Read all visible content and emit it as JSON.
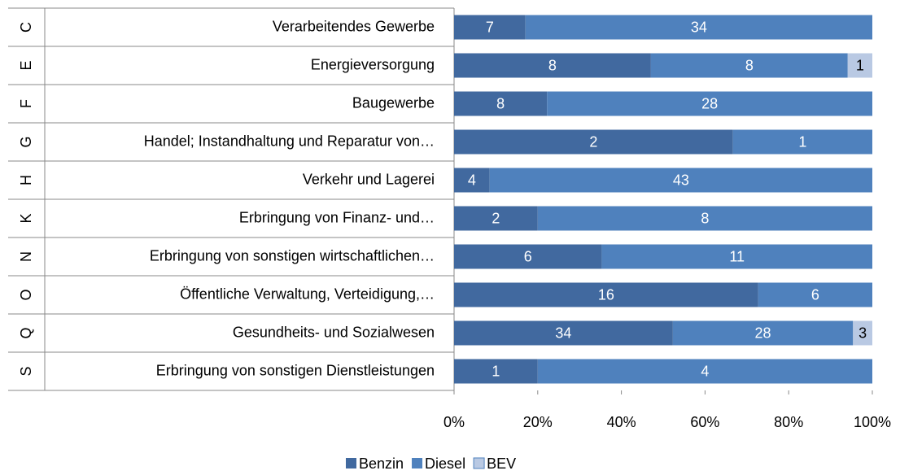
{
  "chart_data": {
    "type": "bar",
    "orientation": "horizontal",
    "stacking": "percent",
    "category_codes": [
      "C",
      "E",
      "F",
      "G",
      "H",
      "K",
      "N",
      "O",
      "Q",
      "S"
    ],
    "categories": [
      "Verarbeitendes Gewerbe",
      "Energieversorgung",
      "Baugewerbe",
      "Handel; Instandhaltung und Reparatur von…",
      "Verkehr und Lagerei",
      "Erbringung von Finanz- und…",
      "Erbringung von sonstigen wirtschaftlichen…",
      "Öffentliche Verwaltung, Verteidigung,…",
      "Gesundheits- und Sozialwesen",
      "Erbringung von sonstigen Dienstleistungen"
    ],
    "series": [
      {
        "name": "Benzin",
        "color": "#41699f",
        "label_color": "#ffffff",
        "values": [
          7,
          8,
          8,
          2,
          4,
          2,
          6,
          16,
          34,
          1
        ]
      },
      {
        "name": "Diesel",
        "color": "#4f81bd",
        "label_color": "#ffffff",
        "values": [
          34,
          8,
          28,
          1,
          43,
          8,
          11,
          6,
          28,
          4
        ]
      },
      {
        "name": "BEV",
        "color": "#b9c9e3",
        "label_color": "#000000",
        "values": [
          null,
          1,
          null,
          null,
          null,
          null,
          null,
          null,
          3,
          null
        ]
      }
    ],
    "xlim": [
      0,
      100
    ],
    "xticks": [
      {
        "value": 0,
        "label": "0%"
      },
      {
        "value": 20,
        "label": "20%"
      },
      {
        "value": 40,
        "label": "40%"
      },
      {
        "value": 60,
        "label": "60%"
      },
      {
        "value": 80,
        "label": "80%"
      },
      {
        "value": 100,
        "label": "100%"
      }
    ],
    "grid": false,
    "legend": "bottom"
  }
}
